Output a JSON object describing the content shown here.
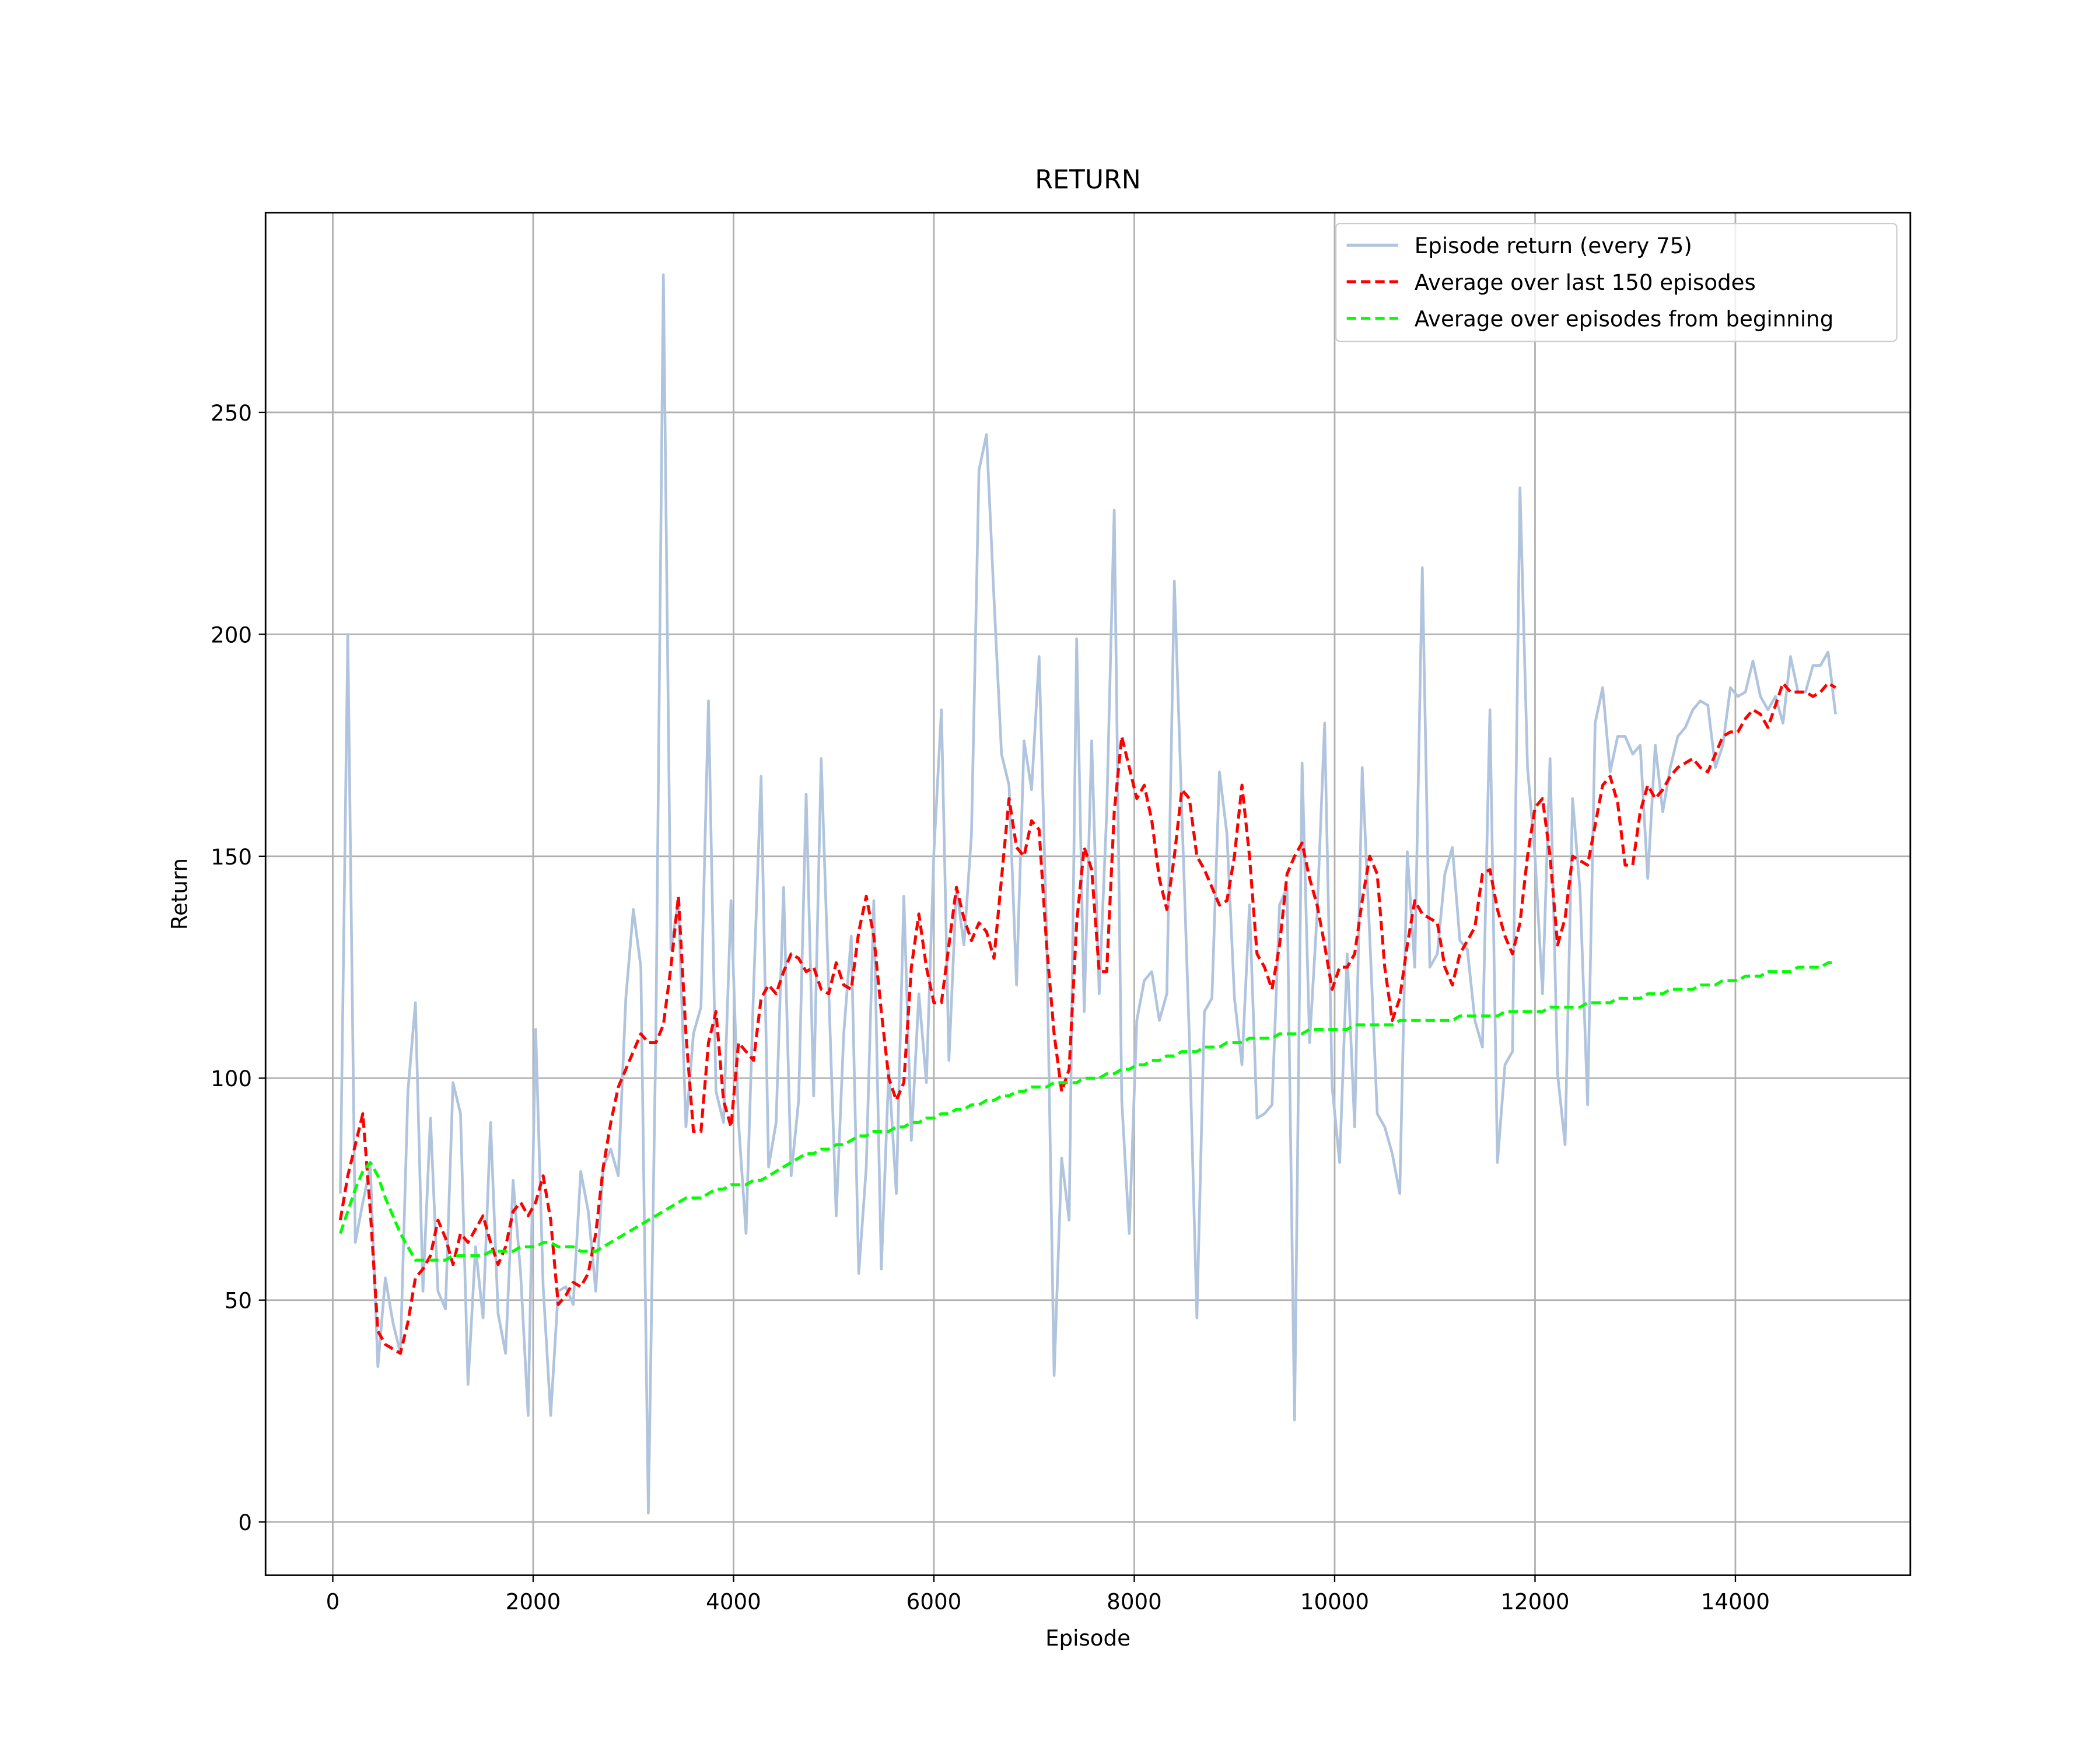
{
  "chart_data": {
    "type": "line",
    "title": "RETURN",
    "x_label": "Episode",
    "y_label": "Return",
    "x": [
      75,
      150,
      225,
      300,
      375,
      450,
      525,
      600,
      675,
      750,
      825,
      900,
      975,
      1050,
      1125,
      1200,
      1275,
      1350,
      1425,
      1500,
      1575,
      1650,
      1725,
      1800,
      1875,
      1950,
      2025,
      2100,
      2175,
      2250,
      2325,
      2400,
      2475,
      2550,
      2625,
      2700,
      2775,
      2850,
      2925,
      3000,
      3075,
      3150,
      3225,
      3300,
      3375,
      3450,
      3525,
      3600,
      3675,
      3750,
      3825,
      3900,
      3975,
      4050,
      4125,
      4200,
      4275,
      4350,
      4425,
      4500,
      4575,
      4650,
      4725,
      4800,
      4875,
      4950,
      5025,
      5100,
      5175,
      5250,
      5325,
      5400,
      5475,
      5550,
      5625,
      5700,
      5775,
      5850,
      5925,
      6000,
      6075,
      6150,
      6225,
      6300,
      6375,
      6450,
      6525,
      6600,
      6675,
      6750,
      6825,
      6900,
      6975,
      7050,
      7125,
      7200,
      7275,
      7350,
      7425,
      7500,
      7575,
      7650,
      7725,
      7800,
      7875,
      7950,
      8025,
      8100,
      8175,
      8250,
      8325,
      8400,
      8475,
      8550,
      8625,
      8700,
      8775,
      8850,
      8925,
      9000,
      9075,
      9150,
      9225,
      9300,
      9375,
      9450,
      9525,
      9600,
      9675,
      9750,
      9825,
      9900,
      9975,
      10050,
      10125,
      10200,
      10275,
      10350,
      10425,
      10500,
      10575,
      10650,
      10725,
      10800,
      10875,
      10950,
      11025,
      11100,
      11175,
      11250,
      11325,
      11400,
      11475,
      11550,
      11625,
      11700,
      11775,
      11850,
      11925,
      12000,
      12075,
      12150,
      12225,
      12300,
      12375,
      12450,
      12525,
      12600,
      12675,
      12750,
      12825,
      12900,
      12975,
      13050,
      13125,
      13200,
      13275,
      13350,
      13425,
      13500,
      13575,
      13650,
      13725,
      13800,
      13875,
      13950,
      14025,
      14100,
      14175,
      14250,
      14325,
      14400,
      14475,
      14550,
      14625,
      14700,
      14775,
      14850,
      14925,
      15000
    ],
    "series": [
      {
        "name": "Episode return (every 75)",
        "color": "#b0c4de",
        "dash": false,
        "values": [
          74,
          200,
          63,
          72,
          80,
          35,
          55,
          45,
          38,
          97,
          117,
          52,
          91,
          52,
          48,
          99,
          92,
          31,
          62,
          46,
          90,
          47,
          38,
          77,
          56,
          24,
          111,
          53,
          24,
          52,
          53,
          49,
          79,
          70,
          52,
          80,
          84,
          78,
          118,
          138,
          125,
          2,
          110,
          281,
          129,
          140,
          89,
          110,
          116,
          185,
          97,
          90,
          140,
          90,
          65,
          120,
          168,
          80,
          90,
          143,
          78,
          95,
          164,
          96,
          172,
          120,
          69,
          110,
          132,
          56,
          80,
          140,
          57,
          102,
          74,
          141,
          86,
          119,
          99,
          151,
          183,
          104,
          143,
          130,
          155,
          237,
          245,
          208,
          173,
          166,
          121,
          176,
          165,
          195,
          133,
          33,
          82,
          68,
          199,
          115,
          176,
          119,
          160,
          228,
          95,
          65,
          113,
          122,
          124,
          113,
          119,
          212,
          160,
          109,
          46,
          115,
          118,
          169,
          155,
          118,
          103,
          139,
          91,
          92,
          94,
          139,
          143,
          23,
          171,
          108,
          137,
          180,
          98,
          81,
          128,
          89,
          170,
          132,
          92,
          89,
          83,
          74,
          151,
          125,
          215,
          125,
          128,
          146,
          152,
          131,
          129,
          113,
          107,
          183,
          81,
          103,
          106,
          233,
          170,
          150,
          119,
          172,
          101,
          85,
          163,
          142,
          94,
          180,
          188,
          169,
          177,
          177,
          173,
          175,
          145,
          175,
          160,
          170,
          177,
          179,
          183,
          185,
          184,
          170,
          175,
          188,
          186,
          187,
          194,
          186,
          183,
          186,
          180,
          195,
          187,
          187,
          193,
          193,
          196,
          182
        ]
      },
      {
        "name": "Average over last 150 episodes",
        "color": "#ff0000",
        "dash": true,
        "values": [
          68,
          78,
          85,
          92,
          70,
          43,
          40,
          39,
          38,
          45,
          55,
          57,
          60,
          68,
          64,
          58,
          65,
          63,
          66,
          69,
          63,
          58,
          62,
          70,
          72,
          69,
          72,
          78,
          68,
          49,
          51,
          54,
          53,
          56,
          65,
          80,
          90,
          98,
          102,
          106,
          110,
          108,
          108,
          112,
          125,
          141,
          110,
          88,
          88,
          108,
          115,
          95,
          89,
          108,
          106,
          104,
          118,
          121,
          119,
          124,
          128,
          127,
          124,
          125,
          120,
          119,
          126,
          121,
          120,
          133,
          141,
          132,
          115,
          100,
          95,
          99,
          125,
          137,
          125,
          117,
          117,
          130,
          143,
          136,
          131,
          135,
          133,
          127,
          145,
          163,
          152,
          150,
          158,
          156,
          130,
          110,
          97,
          102,
          135,
          152,
          147,
          124,
          124,
          160,
          177,
          170,
          163,
          166,
          158,
          145,
          138,
          150,
          165,
          163,
          150,
          147,
          143,
          139,
          140,
          150,
          166,
          150,
          128,
          125,
          120,
          130,
          146,
          150,
          153,
          145,
          139,
          130,
          120,
          125,
          125,
          128,
          140,
          150,
          146,
          125,
          113,
          118,
          130,
          140,
          137,
          136,
          135,
          125,
          121,
          128,
          131,
          134,
          146,
          147,
          138,
          132,
          128,
          135,
          150,
          161,
          163,
          150,
          130,
          136,
          150,
          149,
          148,
          157,
          166,
          168,
          162,
          148,
          148,
          160,
          166,
          163,
          165,
          168,
          170,
          171,
          172,
          170,
          169,
          173,
          177,
          178,
          178,
          181,
          183,
          182,
          179,
          184,
          189,
          187,
          187,
          187,
          186,
          187,
          189,
          188
        ]
      },
      {
        "name": "Average over episodes from beginning",
        "color": "#00ff00",
        "dash": true,
        "values": [
          65,
          70,
          75,
          79,
          81,
          78,
          73,
          69,
          65,
          62,
          59,
          59,
          59,
          59,
          59,
          60,
          60,
          60,
          60,
          60,
          61,
          61,
          61,
          61,
          62,
          62,
          62,
          63,
          63,
          62,
          62,
          62,
          61,
          61,
          61,
          62,
          63,
          64,
          65,
          66,
          67,
          68,
          69,
          70,
          71,
          72,
          73,
          73,
          73,
          74,
          75,
          75,
          76,
          76,
          76,
          77,
          77,
          78,
          79,
          80,
          81,
          82,
          83,
          83,
          84,
          84,
          85,
          85,
          86,
          87,
          87,
          88,
          88,
          88,
          89,
          89,
          90,
          90,
          91,
          91,
          92,
          92,
          93,
          93,
          94,
          94,
          95,
          95,
          96,
          96,
          97,
          97,
          98,
          98,
          98,
          99,
          99,
          99,
          99,
          100,
          100,
          100,
          101,
          101,
          102,
          102,
          103,
          103,
          104,
          104,
          105,
          105,
          106,
          106,
          106,
          107,
          107,
          107,
          108,
          108,
          108,
          109,
          109,
          109,
          109,
          110,
          110,
          110,
          110,
          111,
          111,
          111,
          111,
          111,
          111,
          112,
          112,
          112,
          112,
          112,
          112,
          113,
          113,
          113,
          113,
          113,
          113,
          113,
          113,
          114,
          114,
          114,
          114,
          114,
          114,
          115,
          115,
          115,
          115,
          115,
          115,
          116,
          116,
          116,
          116,
          116,
          117,
          117,
          117,
          117,
          118,
          118,
          118,
          118,
          119,
          119,
          119,
          120,
          120,
          120,
          120,
          121,
          121,
          121,
          122,
          122,
          122,
          123,
          123,
          123,
          124,
          124,
          124,
          124,
          125,
          125,
          125,
          125,
          126,
          126
        ]
      }
    ],
    "xlim": [
      -671,
      15746
    ],
    "ylim": [
      -12,
      295
    ],
    "xticks": [
      0,
      2000,
      4000,
      6000,
      8000,
      10000,
      12000,
      14000
    ],
    "yticks": [
      0,
      50,
      100,
      150,
      200,
      250
    ],
    "grid": true,
    "legend": "upper right"
  }
}
